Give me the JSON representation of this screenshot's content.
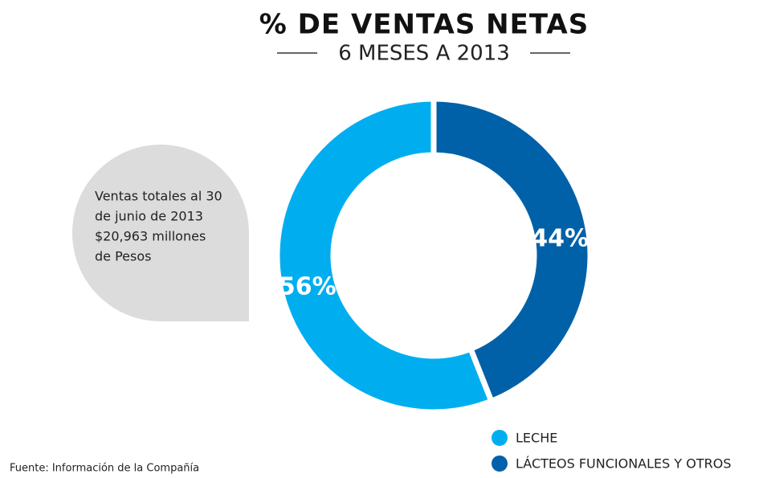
{
  "chart_data": {
    "type": "donut",
    "title": "% DE VENTAS NETAS",
    "subtitle": "6 MESES A 2013",
    "annotation": [
      "Ventas totales al 30",
      "de junio de 2013",
      "$20,963 millones",
      "de Pesos"
    ],
    "source": "Fuente: Información de la Compañía",
    "categories": [
      "LÁCTEOS FUNCIONALES Y OTROS",
      "LECHE"
    ],
    "values": [
      44,
      56
    ],
    "value_labels": [
      "44%",
      "56%"
    ],
    "colors": [
      "#0061a8",
      "#00aeef"
    ]
  }
}
